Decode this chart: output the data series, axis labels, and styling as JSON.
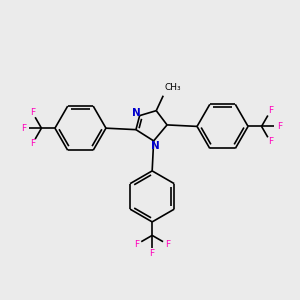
{
  "bg_color": "#ebebeb",
  "bond_color": "#000000",
  "N_color": "#0000cc",
  "F_color": "#ff00bb",
  "lw": 1.2,
  "figsize": [
    3.0,
    3.0
  ],
  "dpi": 100,
  "xlim": [
    0,
    10
  ],
  "ylim": [
    0,
    10
  ],
  "ring_r": 0.85,
  "im_scale": 0.72
}
